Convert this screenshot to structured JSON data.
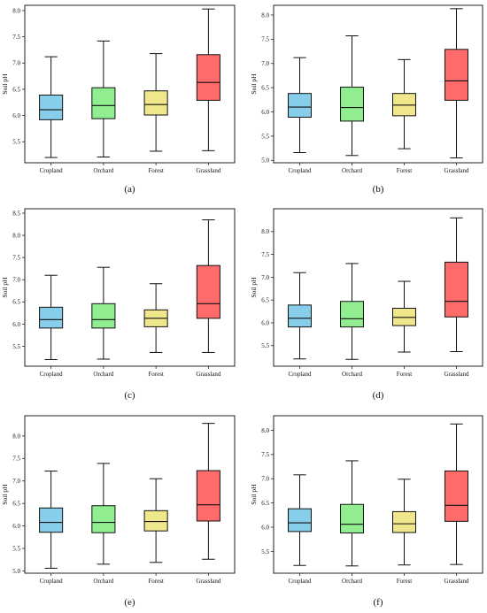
{
  "chart_data": [
    {
      "type": "box",
      "label": "(a)",
      "ylabel": "Soil pH",
      "yticks": [
        "5.5",
        "6.0",
        "6.5",
        "7.0",
        "7.5",
        "8.0"
      ],
      "ylim": [
        5.1,
        8.1
      ],
      "series": [
        {
          "category": "Cropland",
          "min": 5.2,
          "q1": 5.92,
          "median": 6.11,
          "q3": 6.39,
          "max": 7.12,
          "color": "#87CEEB"
        },
        {
          "category": "Orchard",
          "min": 5.21,
          "q1": 5.94,
          "median": 6.19,
          "q3": 6.53,
          "max": 7.42,
          "color": "#90EE90"
        },
        {
          "category": "Forest",
          "min": 5.32,
          "q1": 6.01,
          "median": 6.21,
          "q3": 6.47,
          "max": 7.18,
          "color": "#F0E68C"
        },
        {
          "category": "Grassland",
          "min": 5.33,
          "q1": 6.29,
          "median": 6.63,
          "q3": 7.16,
          "max": 8.03,
          "color": "#FF6B6B"
        }
      ]
    },
    {
      "type": "box",
      "label": "(b)",
      "ylabel": "Soil pH",
      "yticks": [
        "5.0",
        "5.5",
        "6.0",
        "6.5",
        "7.0",
        "7.5",
        "8.0"
      ],
      "ylim": [
        4.95,
        8.2
      ],
      "series": [
        {
          "category": "Cropland",
          "min": 5.16,
          "q1": 5.89,
          "median": 6.1,
          "q3": 6.38,
          "max": 7.12,
          "color": "#87CEEB"
        },
        {
          "category": "Orchard",
          "min": 5.1,
          "q1": 5.81,
          "median": 6.09,
          "q3": 6.51,
          "max": 7.57,
          "color": "#90EE90"
        },
        {
          "category": "Forest",
          "min": 5.24,
          "q1": 5.92,
          "median": 6.14,
          "q3": 6.38,
          "max": 7.08,
          "color": "#F0E68C"
        },
        {
          "category": "Grassland",
          "min": 5.05,
          "q1": 6.24,
          "median": 6.64,
          "q3": 7.29,
          "max": 8.13,
          "color": "#FF6B6B"
        }
      ]
    },
    {
      "type": "box",
      "label": "(c)",
      "ylabel": "Soil pH",
      "yticks": [
        "5.5",
        "6.0",
        "6.5",
        "7.0",
        "7.5",
        "8.0",
        "8.5"
      ],
      "ylim": [
        5.05,
        8.6
      ],
      "series": [
        {
          "category": "Cropland",
          "min": 5.2,
          "q1": 5.91,
          "median": 6.1,
          "q3": 6.38,
          "max": 7.1,
          "color": "#87CEEB"
        },
        {
          "category": "Orchard",
          "min": 5.21,
          "q1": 5.91,
          "median": 6.1,
          "q3": 6.46,
          "max": 7.28,
          "color": "#90EE90"
        },
        {
          "category": "Forest",
          "min": 5.36,
          "q1": 5.94,
          "median": 6.13,
          "q3": 6.32,
          "max": 6.91,
          "color": "#F0E68C"
        },
        {
          "category": "Grassland",
          "min": 5.36,
          "q1": 6.13,
          "median": 6.46,
          "q3": 7.32,
          "max": 8.35,
          "color": "#FF6B6B"
        }
      ]
    },
    {
      "type": "box",
      "label": "(d)",
      "ylabel": "Soil pH",
      "yticks": [
        "5.5",
        "6.0",
        "6.5",
        "7.0",
        "7.5",
        "8.0"
      ],
      "ylim": [
        5.05,
        8.5
      ],
      "series": [
        {
          "category": "Cropland",
          "min": 5.21,
          "q1": 5.91,
          "median": 6.1,
          "q3": 6.39,
          "max": 7.1,
          "color": "#87CEEB"
        },
        {
          "category": "Orchard",
          "min": 5.2,
          "q1": 5.91,
          "median": 6.09,
          "q3": 6.47,
          "max": 7.3,
          "color": "#90EE90"
        },
        {
          "category": "Forest",
          "min": 5.36,
          "q1": 5.94,
          "median": 6.12,
          "q3": 6.32,
          "max": 6.91,
          "color": "#F0E68C"
        },
        {
          "category": "Grassland",
          "min": 5.37,
          "q1": 6.13,
          "median": 6.47,
          "q3": 7.33,
          "max": 8.3,
          "color": "#FF6B6B"
        }
      ]
    },
    {
      "type": "box",
      "label": "(e)",
      "ylabel": "Soil pH",
      "yticks": [
        "5.0",
        "5.5",
        "6.0",
        "6.5",
        "7.0",
        "7.5",
        "8.0"
      ],
      "ylim": [
        4.95,
        8.45
      ],
      "series": [
        {
          "category": "Cropland",
          "min": 5.06,
          "q1": 5.86,
          "median": 6.08,
          "q3": 6.4,
          "max": 7.22,
          "color": "#87CEEB"
        },
        {
          "category": "Orchard",
          "min": 5.15,
          "q1": 5.85,
          "median": 6.08,
          "q3": 6.45,
          "max": 7.39,
          "color": "#90EE90"
        },
        {
          "category": "Forest",
          "min": 5.19,
          "q1": 5.89,
          "median": 6.1,
          "q3": 6.34,
          "max": 7.05,
          "color": "#F0E68C"
        },
        {
          "category": "Grassland",
          "min": 5.26,
          "q1": 6.11,
          "median": 6.47,
          "q3": 7.23,
          "max": 8.28,
          "color": "#FF6B6B"
        }
      ]
    },
    {
      "type": "box",
      "label": "(f)",
      "ylabel": "Soil pH",
      "yticks": [
        "5.5",
        "6.0",
        "6.5",
        "7.0",
        "7.5",
        "8.0"
      ],
      "ylim": [
        5.05,
        8.3
      ],
      "series": [
        {
          "category": "Cropland",
          "min": 5.21,
          "q1": 5.91,
          "median": 6.09,
          "q3": 6.38,
          "max": 7.08,
          "color": "#87CEEB"
        },
        {
          "category": "Orchard",
          "min": 5.2,
          "q1": 5.88,
          "median": 6.06,
          "q3": 6.47,
          "max": 7.37,
          "color": "#90EE90"
        },
        {
          "category": "Forest",
          "min": 5.22,
          "q1": 5.89,
          "median": 6.07,
          "q3": 6.32,
          "max": 6.99,
          "color": "#F0E68C"
        },
        {
          "category": "Grassland",
          "min": 5.23,
          "q1": 6.12,
          "median": 6.45,
          "q3": 7.16,
          "max": 8.13,
          "color": "#FF6B6B"
        }
      ]
    }
  ]
}
